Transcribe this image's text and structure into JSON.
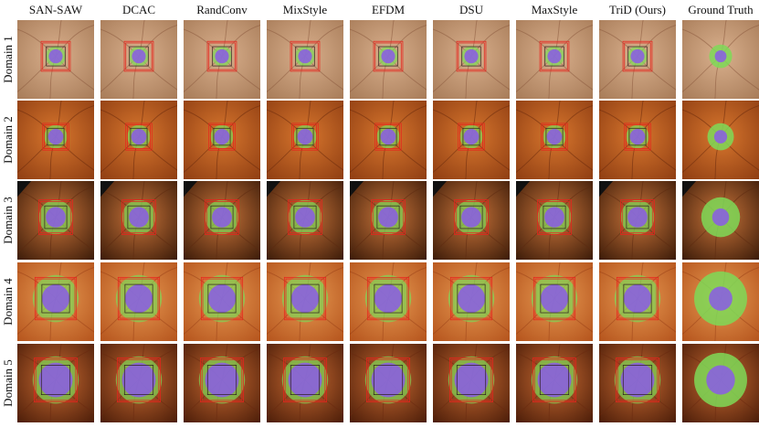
{
  "figure": {
    "methods": [
      "SAN-SAW",
      "DCAC",
      "RandConv",
      "MixStyle",
      "EFDM",
      "DSU",
      "MaxStyle",
      "TriD (Ours)",
      "Ground Truth"
    ],
    "domains": [
      "Domain 1",
      "Domain 2",
      "Domain 3",
      "Domain 4",
      "Domain 5"
    ],
    "colors": {
      "optic_disc": "#7ed957",
      "optic_cup": "#8a5ce6",
      "box_red": "#e8231c",
      "box_dark": "#2a1a1a"
    }
  }
}
